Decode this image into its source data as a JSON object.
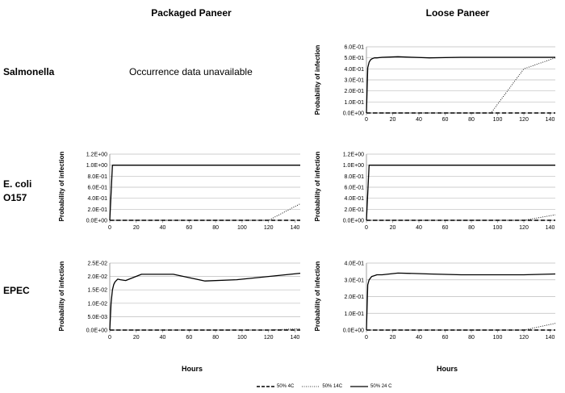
{
  "titles": {
    "packaged": "Packaged Paneer",
    "loose": "Loose Paneer"
  },
  "rows": {
    "salmonella": "Salmonella",
    "ecoli_1": "E. coli",
    "ecoli_2": "O157",
    "epec": "EPEC"
  },
  "na_text": "Occurrence data unavailable",
  "xlabel": "Hours",
  "ylabel": "Probability of infection",
  "legend": [
    {
      "label": "50% 4C",
      "style": "dash"
    },
    {
      "label": "50% 14C",
      "style": "dot"
    },
    {
      "label": "50% 24 C",
      "style": "solid"
    }
  ],
  "chart_data": [
    {
      "id": "salmonella-loose",
      "type": "line",
      "ylim": [
        0,
        0.6
      ],
      "yticks": [
        "0.0E+00",
        "1.0E-01",
        "2.0E-01",
        "3.0E-01",
        "4.0E-01",
        "5.0E-01",
        "6.0E-01"
      ],
      "xticks": [
        "0",
        "20",
        "40",
        "60",
        "80",
        "100",
        "120",
        "140"
      ],
      "series": [
        {
          "style": "dash",
          "x": [
            0,
            144
          ],
          "y": [
            0.0,
            0.0
          ]
        },
        {
          "style": "dot",
          "x": [
            0,
            95,
            120,
            144
          ],
          "y": [
            0.0,
            0.0,
            0.4,
            0.5
          ]
        },
        {
          "style": "solid",
          "x": [
            0,
            1,
            2,
            3,
            4,
            6,
            8,
            12,
            24,
            36,
            48,
            72,
            96,
            120,
            144
          ],
          "y": [
            0,
            0.41,
            0.46,
            0.48,
            0.49,
            0.5,
            0.5,
            0.505,
            0.51,
            0.505,
            0.5,
            0.505,
            0.505,
            0.505,
            0.505
          ]
        }
      ]
    },
    {
      "id": "ecoli-packaged",
      "type": "line",
      "ylim": [
        0,
        1.2
      ],
      "yticks": [
        "0.0E+00",
        "2.0E-01",
        "4.0E-01",
        "6.0E-01",
        "8.0E-01",
        "1.0E+00",
        "1.2E+00"
      ],
      "xticks": [
        "0",
        "20",
        "40",
        "60",
        "80",
        "100",
        "120",
        "140"
      ],
      "series": [
        {
          "style": "dash",
          "x": [
            0,
            144
          ],
          "y": [
            0.0,
            0.0
          ]
        },
        {
          "style": "dot",
          "x": [
            0,
            120,
            144
          ],
          "y": [
            0.0,
            0.0,
            0.3
          ]
        },
        {
          "style": "solid",
          "x": [
            0,
            2,
            144
          ],
          "y": [
            0,
            1.0,
            1.0
          ]
        }
      ]
    },
    {
      "id": "ecoli-loose",
      "type": "line",
      "ylim": [
        0,
        1.2
      ],
      "yticks": [
        "0.0E+00",
        "2.0E-01",
        "4.0E-01",
        "6.0E-01",
        "8.0E-01",
        "1.0E+00",
        "1.2E+00"
      ],
      "xticks": [
        "0",
        "20",
        "40",
        "60",
        "80",
        "100",
        "120",
        "140"
      ],
      "series": [
        {
          "style": "dash",
          "x": [
            0,
            144
          ],
          "y": [
            0.0,
            0.0
          ]
        },
        {
          "style": "dot",
          "x": [
            0,
            120,
            144
          ],
          "y": [
            0.0,
            0.0,
            0.1
          ]
        },
        {
          "style": "solid",
          "x": [
            0,
            2,
            144
          ],
          "y": [
            0,
            1.0,
            1.0
          ]
        }
      ]
    },
    {
      "id": "epec-packaged",
      "type": "line",
      "ylim": [
        0,
        0.025
      ],
      "yticks": [
        "0.0E+00",
        "5.0E-03",
        "1.0E-02",
        "1.5E-02",
        "2.0E-02",
        "2.5E-02"
      ],
      "xticks": [
        "0",
        "20",
        "40",
        "60",
        "80",
        "100",
        "120",
        "140"
      ],
      "series": [
        {
          "style": "dash",
          "x": [
            0,
            144
          ],
          "y": [
            0.0,
            0.0
          ]
        },
        {
          "style": "dot",
          "x": [
            0,
            120,
            144
          ],
          "y": [
            0.0,
            0.0,
            0.0005
          ]
        },
        {
          "style": "solid",
          "x": [
            0,
            1,
            2,
            3,
            4,
            6,
            8,
            12,
            24,
            36,
            48,
            72,
            96,
            120,
            144
          ],
          "y": [
            0,
            0.01,
            0.015,
            0.017,
            0.018,
            0.019,
            0.0188,
            0.0185,
            0.0208,
            0.0208,
            0.0208,
            0.0183,
            0.0188,
            0.02,
            0.0212
          ]
        }
      ]
    },
    {
      "id": "epec-loose",
      "type": "line",
      "ylim": [
        0,
        0.4
      ],
      "yticks": [
        "0.0E+00",
        "1.0E-01",
        "2.0E-01",
        "3.0E-01",
        "4.0E-01"
      ],
      "xticks": [
        "0",
        "20",
        "40",
        "60",
        "80",
        "100",
        "120",
        "140"
      ],
      "series": [
        {
          "style": "dash",
          "x": [
            0,
            144
          ],
          "y": [
            0.0,
            0.0
          ]
        },
        {
          "style": "dot",
          "x": [
            0,
            120,
            144
          ],
          "y": [
            0.0,
            0.0,
            0.04
          ]
        },
        {
          "style": "solid",
          "x": [
            0,
            1,
            2,
            3,
            4,
            6,
            8,
            12,
            24,
            36,
            48,
            72,
            96,
            120,
            144
          ],
          "y": [
            0,
            0.27,
            0.3,
            0.31,
            0.32,
            0.325,
            0.33,
            0.33,
            0.34,
            0.338,
            0.335,
            0.33,
            0.33,
            0.33,
            0.335
          ]
        }
      ]
    }
  ]
}
